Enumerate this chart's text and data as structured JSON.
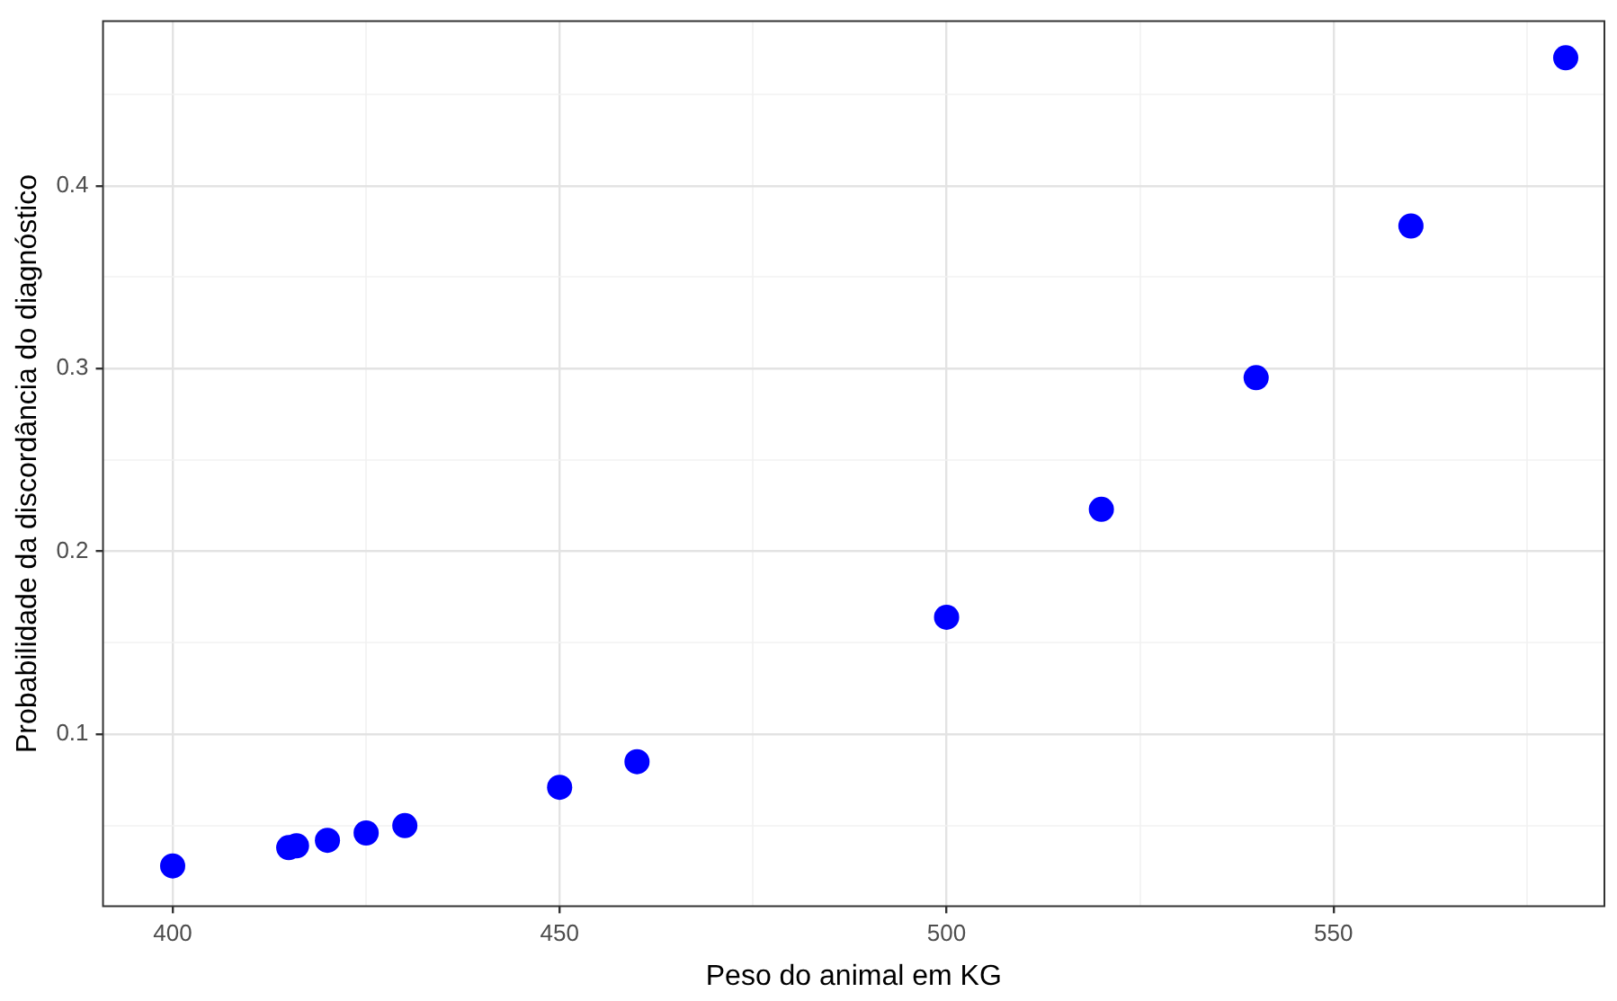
{
  "chart_data": {
    "type": "scatter",
    "xlabel": "Peso do animal em KG",
    "ylabel": "Probabilidade da discordância do diagnóstico",
    "x": [
      400,
      415,
      416,
      420,
      425,
      430,
      450,
      460,
      500,
      520,
      540,
      560,
      580
    ],
    "values": [
      0.028,
      0.038,
      0.039,
      0.042,
      0.046,
      0.05,
      0.071,
      0.085,
      0.164,
      0.223,
      0.295,
      0.378,
      0.47
    ],
    "color": "#0000ff",
    "marker": "circle",
    "grid": true,
    "xlim": [
      391,
      585
    ],
    "xticks": [
      400,
      {
        "value": 425,
        "label": null
      },
      450,
      {
        "value": 475,
        "label": null
      },
      500,
      {
        "value": 525,
        "label": null
      },
      550,
      {
        "value": 575,
        "label": null
      }
    ],
    "ylim": [
      0.006,
      0.49
    ],
    "yticks": [
      {
        "value": 0.05,
        "label": null
      },
      0.1,
      {
        "value": 0.15,
        "label": null
      },
      0.2,
      {
        "value": 0.25,
        "label": null
      },
      0.3,
      {
        "value": 0.35,
        "label": null
      },
      0.4,
      {
        "value": 0.45,
        "label": null
      }
    ]
  }
}
